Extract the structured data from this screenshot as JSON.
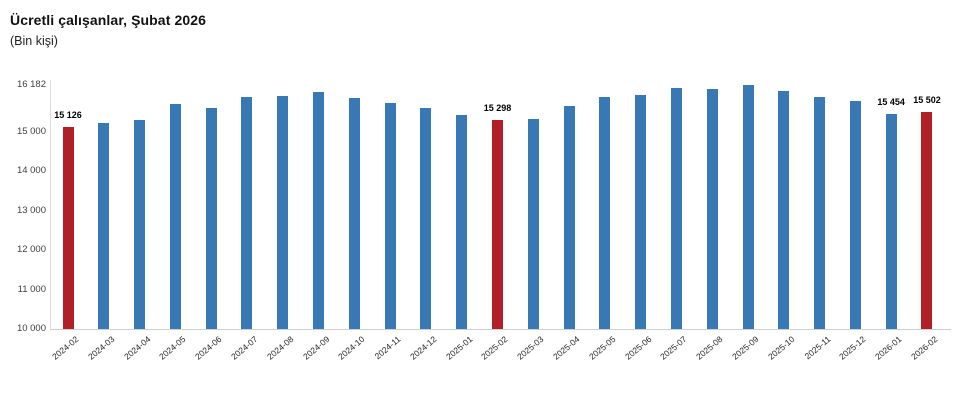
{
  "title": "Ücretli çalışanlar, Şubat 2026",
  "subtitle": "(Bin kişi)",
  "chart_data": {
    "type": "bar",
    "title": "Ücretli çalışanlar, Şubat 2026",
    "ylabel": "(Bin kişi)",
    "xlabel": "",
    "ylim": [
      10000,
      16182
    ],
    "grid": false,
    "legend": "none",
    "yticks": [
      {
        "label": "16 182",
        "value": 16182
      },
      {
        "label": "15 000",
        "value": 15000
      },
      {
        "label": "14 000",
        "value": 14000
      },
      {
        "label": "13 000",
        "value": 13000
      },
      {
        "label": "12 000",
        "value": 12000
      },
      {
        "label": "11 000",
        "value": 11000
      },
      {
        "label": "10 000",
        "value": 10000
      }
    ],
    "categories": [
      "2024-02",
      "2024-03",
      "2024-04",
      "2024-05",
      "2024-06",
      "2024-07",
      "2024-08",
      "2024-09",
      "2024-10",
      "2024-11",
      "2024-12",
      "2025-01",
      "2025-02",
      "2025-03",
      "2025-04",
      "2025-05",
      "2025-06",
      "2025-07",
      "2025-08",
      "2025-09",
      "2025-10",
      "2025-11",
      "2025-12",
      "2026-01",
      "2026-02"
    ],
    "values": [
      15126,
      15220,
      15290,
      15700,
      15590,
      15890,
      15900,
      16000,
      15865,
      15720,
      15590,
      15420,
      15298,
      15315,
      15650,
      15880,
      15925,
      16095,
      16070,
      16182,
      16030,
      15890,
      15775,
      15454,
      15502
    ],
    "highlight_indices": [
      0,
      12,
      24
    ],
    "data_labels": [
      {
        "index": 0,
        "text": "15 126"
      },
      {
        "index": 12,
        "text": "15 298"
      },
      {
        "index": 23,
        "text": "15 454"
      },
      {
        "index": 24,
        "text": "15 502"
      }
    ],
    "colors": {
      "bar": "#3878b4",
      "highlight": "#b02026",
      "axis_line": "#d6d6d6",
      "ytick_text": "#404040",
      "xtick_text": "#262626",
      "label_text": "#000000"
    }
  }
}
